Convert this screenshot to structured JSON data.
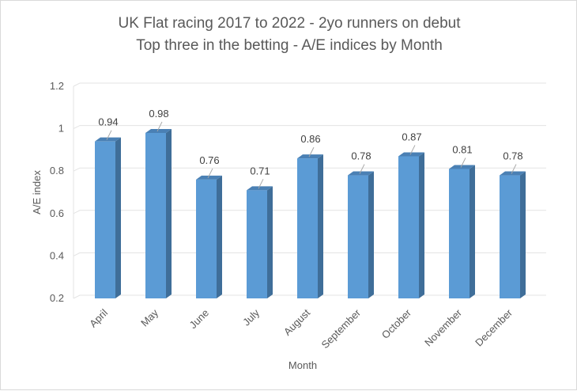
{
  "chart_data": {
    "type": "bar",
    "title": "UK Flat racing 2017 to 2022 - 2yo runners on debut",
    "subtitle": "Top three in the betting - A/E indices by Month",
    "xlabel": "Month",
    "ylabel": "A/E index",
    "ylim": [
      0.2,
      1.2
    ],
    "yticks": [
      "0.2",
      "0.4",
      "0.6",
      "0.8",
      "1",
      "1.2"
    ],
    "grid": true,
    "categories": [
      "April",
      "May",
      "June",
      "July",
      "August",
      "September",
      "October",
      "November",
      "December"
    ],
    "values": [
      0.94,
      0.98,
      0.76,
      0.71,
      0.86,
      0.78,
      0.87,
      0.81,
      0.78
    ],
    "labels": [
      "0.94",
      "0.98",
      "0.76",
      "0.71",
      "0.86",
      "0.78",
      "0.87",
      "0.81",
      "0.78"
    ],
    "colors": {
      "front": "#5b9bd5",
      "side": "#3f6e99",
      "top": "#4a80b4",
      "grid": "#e3e3e3"
    }
  }
}
